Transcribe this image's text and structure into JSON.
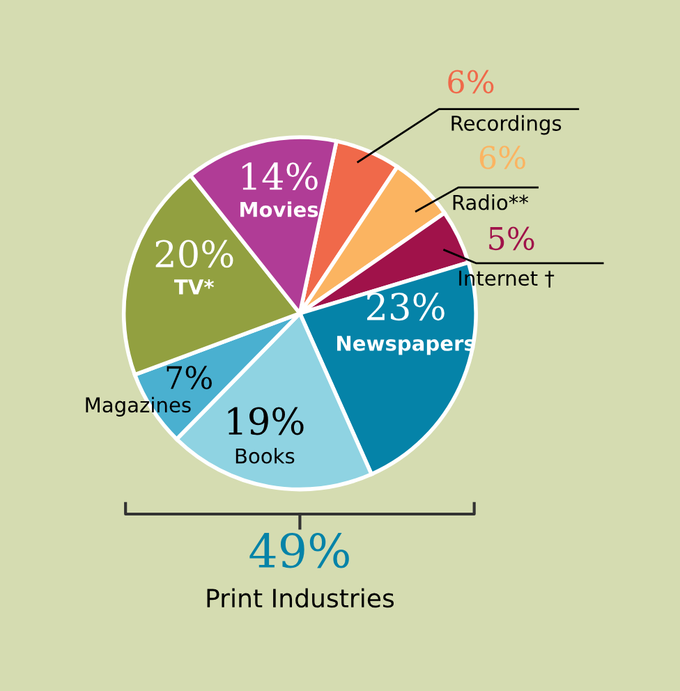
{
  "chart_data": {
    "type": "pie",
    "categories": [
      "Recordings",
      "Radio**",
      "Internet †",
      "Newspapers",
      "Books",
      "Magazines",
      "TV*",
      "Movies"
    ],
    "values": [
      6,
      6,
      5,
      23,
      19,
      7,
      20,
      14
    ],
    "colors": [
      "#f0694a",
      "#fbb461",
      "#a0124a",
      "#0583a8",
      "#8fd3e2",
      "#4ab0d0",
      "#92a040",
      "#b03c96"
    ],
    "value_labels": [
      "6%",
      "6%",
      "5%",
      "23%",
      "19%",
      "7%",
      "20%",
      "14%"
    ],
    "annotations": [
      "49%",
      "Print Industries"
    ]
  }
}
